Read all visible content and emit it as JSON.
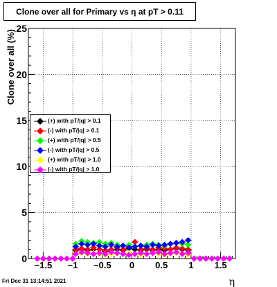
{
  "chart_data": {
    "type": "scatter",
    "title": "Clone  over all for Primary vs  η at pT > 0.11",
    "xlabel": "η",
    "ylabel": "Clone  over all (%)",
    "xlim": [
      -1.75,
      1.75
    ],
    "ylim": [
      0,
      25
    ],
    "x_ticks": [
      "−1.5",
      "−1",
      "−0.5",
      "0",
      "0.5",
      "1",
      "1.5"
    ],
    "x_tick_values": [
      -1.5,
      -1,
      -0.5,
      0,
      0.5,
      1,
      1.5
    ],
    "y_ticks": [
      "0",
      "5",
      "10",
      "15",
      "20",
      "25"
    ],
    "y_tick_values": [
      0,
      5,
      10,
      15,
      20,
      25
    ],
    "grid": true,
    "legend_position": "left-middle",
    "timestamp": "Fri Dec 31 13:14:51 2021",
    "series": [
      {
        "name": "(+) with pT/|q| > 0.1",
        "color": "#000000",
        "x": [
          -1.6,
          -1.5,
          -1.4,
          -1.3,
          -1.2,
          -1.1,
          -1.0,
          -0.95,
          -0.85,
          -0.75,
          -0.65,
          -0.55,
          -0.45,
          -0.35,
          -0.25,
          -0.15,
          -0.05,
          0.05,
          0.15,
          0.25,
          0.35,
          0.45,
          0.55,
          0.65,
          0.75,
          0.85,
          0.95,
          1.05,
          1.15,
          1.25,
          1.35,
          1.45,
          1.55,
          1.65
        ],
        "y": [
          0,
          0,
          0,
          0,
          0,
          0,
          0,
          0.9,
          1.0,
          0.9,
          1.0,
          1.0,
          0.8,
          0.9,
          1.0,
          0.9,
          1.1,
          1.0,
          0.9,
          1.0,
          0.9,
          1.0,
          0.9,
          1.0,
          1.1,
          1.0,
          0.9,
          0,
          0,
          0,
          0,
          0,
          0,
          0
        ]
      },
      {
        "name": "(-) with pT/|q| > 0.1",
        "color": "#ff0000",
        "x": [
          -1.6,
          -1.5,
          -1.4,
          -1.3,
          -1.2,
          -1.1,
          -1.0,
          -0.95,
          -0.85,
          -0.75,
          -0.65,
          -0.55,
          -0.45,
          -0.35,
          -0.25,
          -0.15,
          -0.05,
          0.05,
          0.15,
          0.25,
          0.35,
          0.45,
          0.55,
          0.65,
          0.75,
          0.85,
          0.95,
          1.05,
          1.15,
          1.25,
          1.35,
          1.45,
          1.55,
          1.65
        ],
        "y": [
          0,
          0,
          0,
          0,
          0,
          0,
          0,
          1.0,
          1.1,
          1.0,
          1.2,
          1.0,
          0.9,
          1.0,
          1.2,
          1.0,
          1.3,
          1.8,
          1.0,
          1.1,
          1.0,
          1.2,
          1.1,
          1.0,
          1.2,
          1.1,
          1.0,
          0,
          0,
          0,
          0,
          0,
          0,
          0
        ]
      },
      {
        "name": "(+) with pT/|q| > 0.5",
        "color": "#00ff00",
        "x": [
          -1.6,
          -1.5,
          -1.4,
          -1.3,
          -1.2,
          -1.1,
          -1.0,
          -0.95,
          -0.85,
          -0.75,
          -0.65,
          -0.55,
          -0.45,
          -0.35,
          -0.25,
          -0.15,
          -0.05,
          0.05,
          0.15,
          0.25,
          0.35,
          0.45,
          0.55,
          0.65,
          0.75,
          0.85,
          0.95,
          1.05,
          1.15,
          1.25,
          1.35,
          1.45,
          1.55,
          1.65
        ],
        "y": [
          0,
          0,
          0,
          0,
          0,
          0,
          0,
          1.6,
          1.9,
          1.8,
          1.7,
          1.8,
          1.6,
          1.7,
          1.5,
          1.4,
          1.5,
          1.3,
          1.4,
          1.5,
          1.6,
          1.5,
          1.4,
          1.6,
          1.7,
          1.6,
          1.5,
          0,
          0,
          0,
          0,
          0,
          0,
          0
        ]
      },
      {
        "name": "(-) with pT/|q| > 0.5",
        "color": "#0000ff",
        "x": [
          -1.6,
          -1.5,
          -1.4,
          -1.3,
          -1.2,
          -1.1,
          -1.0,
          -0.95,
          -0.85,
          -0.75,
          -0.65,
          -0.55,
          -0.45,
          -0.35,
          -0.25,
          -0.15,
          -0.05,
          0.05,
          0.15,
          0.25,
          0.35,
          0.45,
          0.55,
          0.65,
          0.75,
          0.85,
          0.95,
          1.05,
          1.15,
          1.25,
          1.35,
          1.45,
          1.55,
          1.65
        ],
        "y": [
          0,
          0,
          0,
          0,
          0,
          0,
          0,
          1.3,
          1.6,
          1.5,
          1.6,
          1.4,
          1.3,
          1.5,
          1.3,
          1.4,
          1.2,
          1.3,
          1.4,
          1.3,
          1.5,
          1.4,
          1.5,
          1.6,
          1.7,
          1.8,
          2.0,
          0,
          0,
          0,
          0,
          0,
          0,
          0
        ]
      },
      {
        "name": "(+) with pT/|q| > 1.0",
        "color": "#ffff00",
        "x": [
          -1.6,
          -1.5,
          -1.4,
          -1.3,
          -1.2,
          -1.1,
          -1.0,
          -0.95,
          -0.85,
          -0.75,
          -0.65,
          -0.55,
          -0.45,
          -0.35,
          -0.25,
          -0.15,
          -0.05,
          0.05,
          0.15,
          0.25,
          0.35,
          0.45,
          0.55,
          0.65,
          0.75,
          0.85,
          0.95,
          1.05,
          1.15,
          1.25,
          1.35,
          1.45,
          1.55,
          1.65
        ],
        "y": [
          0,
          0,
          0,
          0,
          0,
          0,
          0,
          0.5,
          0.6,
          0.5,
          0.6,
          0.5,
          0.4,
          0.5,
          0.6,
          0.5,
          0.6,
          0.5,
          0.4,
          0.5,
          0.6,
          0.5,
          0.4,
          0.5,
          0.6,
          0.5,
          0.4,
          0,
          0,
          0,
          0,
          0,
          0,
          0
        ]
      },
      {
        "name": "(-) with pT/|q| > 1.0",
        "color": "#ff00ff",
        "x": [
          -1.6,
          -1.5,
          -1.4,
          -1.3,
          -1.2,
          -1.1,
          -1.0,
          -0.95,
          -0.85,
          -0.75,
          -0.65,
          -0.55,
          -0.45,
          -0.35,
          -0.25,
          -0.15,
          -0.05,
          0.05,
          0.15,
          0.25,
          0.35,
          0.45,
          0.55,
          0.65,
          0.75,
          0.85,
          0.95,
          1.05,
          1.15,
          1.25,
          1.35,
          1.45,
          1.55,
          1.65
        ],
        "y": [
          0,
          0,
          0,
          0,
          0,
          0,
          0,
          0.5,
          0.7,
          0.6,
          0.5,
          0.6,
          0.5,
          0.7,
          0.6,
          0.5,
          0.4,
          0.5,
          0.6,
          0.5,
          0.6,
          0.7,
          0.5,
          0.6,
          0.7,
          0.5,
          0.6,
          0,
          0,
          0,
          0,
          0,
          0,
          0
        ]
      }
    ]
  }
}
